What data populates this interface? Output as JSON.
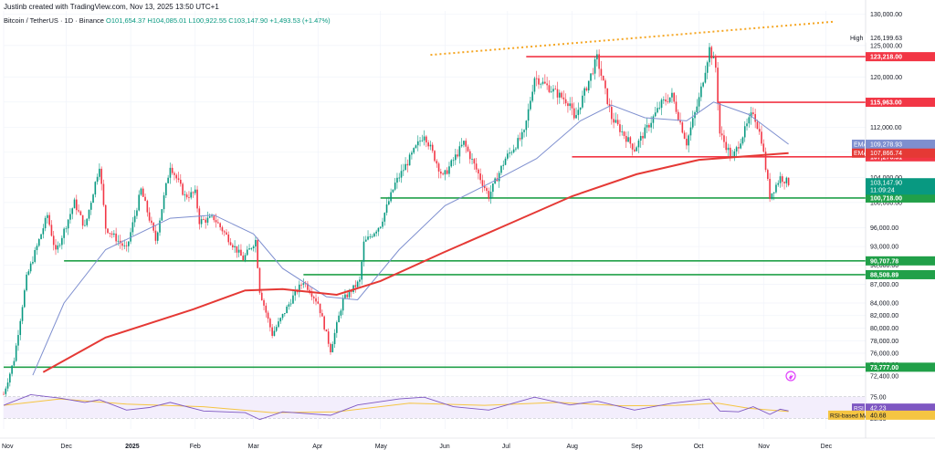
{
  "header": {
    "credit": "Justinb created with TradingView.com, Nov 13, 2025 13:50 UTC+1",
    "symbol": "Bitcoin / TetherUS · 1D · Binance",
    "ohlc": "O101,654.37 H104,085.01 L100,922.55 C103,147.90 +1,493.53 (+1.47%)"
  },
  "colors": {
    "up": "#089981",
    "down": "#f23645",
    "ema_long": "#e53935",
    "ema_short": "#7e8fcf",
    "support": "#21a049",
    "resistance": "#f23645",
    "trendline": "#f5a623",
    "rsi": "#7e57c2",
    "rsi_ma": "#f5c542"
  },
  "chart_data": {
    "type": "candlestick",
    "title": "Bitcoin / TetherUS · 1D · Binance",
    "y_axis": {
      "ticks": [
        130000,
        125000,
        120000,
        116000,
        112000,
        108000,
        104000,
        100000,
        96000,
        93000,
        90000,
        87000,
        84000,
        82000,
        80000,
        78000,
        76000,
        74200,
        72400
      ],
      "tick_labels": [
        "130,000.00",
        "125,000.00",
        "120,000.00",
        "116,000.00",
        "112,000.00",
        "108,000.00",
        "104,000.00",
        "100,000.00",
        "96,000.00",
        "93,000.00",
        "90,000.00",
        "87,000.00",
        "84,000.00",
        "82,000.00",
        "80,000.00",
        "78,000.00",
        "76,000.00",
        "74,200.00",
        "72,400.00"
      ],
      "range": [
        71500,
        130500
      ]
    },
    "x_axis": {
      "labels": [
        "Nov",
        "Dec",
        "2025",
        "Feb",
        "Mar",
        "Apr",
        "May",
        "Jun",
        "Jul",
        "Aug",
        "Sep",
        "Oct",
        "Nov",
        "Dec"
      ]
    },
    "price_path": [
      [
        "2024-11-01",
        69500
      ],
      [
        "2024-11-06",
        75000
      ],
      [
        "2024-11-12",
        88000
      ],
      [
        "2024-11-22",
        98000
      ],
      [
        "2024-11-26",
        92000
      ],
      [
        "2024-12-05",
        100000
      ],
      [
        "2024-12-10",
        96000
      ],
      [
        "2024-12-17",
        106000
      ],
      [
        "2024-12-20",
        96000
      ],
      [
        "2024-12-30",
        92500
      ],
      [
        "2025-01-06",
        102000
      ],
      [
        "2025-01-13",
        94000
      ],
      [
        "2025-01-20",
        106000
      ],
      [
        "2025-01-27",
        101000
      ],
      [
        "2025-02-01",
        101500
      ],
      [
        "2025-02-03",
        97000
      ],
      [
        "2025-02-10",
        97500
      ],
      [
        "2025-02-24",
        91000
      ],
      [
        "2025-03-02",
        94000
      ],
      [
        "2025-03-04",
        86000
      ],
      [
        "2025-03-10",
        79000
      ],
      [
        "2025-03-20",
        85000
      ],
      [
        "2025-03-25",
        87500
      ],
      [
        "2025-04-01",
        84000
      ],
      [
        "2025-04-07",
        76500
      ],
      [
        "2025-04-13",
        84500
      ],
      [
        "2025-04-21",
        87500
      ],
      [
        "2025-04-23",
        93500
      ],
      [
        "2025-05-01",
        96500
      ],
      [
        "2025-05-08",
        103000
      ],
      [
        "2025-05-22",
        111000
      ],
      [
        "2025-05-31",
        104000
      ],
      [
        "2025-06-10",
        109500
      ],
      [
        "2025-06-22",
        101000
      ],
      [
        "2025-06-30",
        107000
      ],
      [
        "2025-07-09",
        111000
      ],
      [
        "2025-07-14",
        120000
      ],
      [
        "2025-07-20",
        118500
      ],
      [
        "2025-07-31",
        115800
      ],
      [
        "2025-08-02",
        113000
      ],
      [
        "2025-08-13",
        123000
      ],
      [
        "2025-08-20",
        113500
      ],
      [
        "2025-08-31",
        108500
      ],
      [
        "2025-09-13",
        115800
      ],
      [
        "2025-09-18",
        117000
      ],
      [
        "2025-09-25",
        109500
      ],
      [
        "2025-10-01",
        116500
      ],
      [
        "2025-10-06",
        124500
      ],
      [
        "2025-10-09",
        121500
      ],
      [
        "2025-10-11",
        111000
      ],
      [
        "2025-10-17",
        107000
      ],
      [
        "2025-10-27",
        114500
      ],
      [
        "2025-10-31",
        110000
      ],
      [
        "2025-11-04",
        101000
      ],
      [
        "2025-11-09",
        104000
      ],
      [
        "2025-11-13",
        103147.9
      ]
    ],
    "ema_long": [
      [
        "2024-11-20",
        73000
      ],
      [
        "2024-12-20",
        78500
      ],
      [
        "2025-01-31",
        83000
      ],
      [
        "2025-02-25",
        86000
      ],
      [
        "2025-03-15",
        86200
      ],
      [
        "2025-04-10",
        85300
      ],
      [
        "2025-05-01",
        87500
      ],
      [
        "2025-05-31",
        92000
      ],
      [
        "2025-07-01",
        96500
      ],
      [
        "2025-08-01",
        101000
      ],
      [
        "2025-09-01",
        104500
      ],
      [
        "2025-10-01",
        106800
      ],
      [
        "2025-11-13",
        107866.74
      ]
    ],
    "ema_short": [
      [
        "2024-11-15",
        72500
      ],
      [
        "2024-11-30",
        84000
      ],
      [
        "2024-12-20",
        92500
      ],
      [
        "2025-01-20",
        97500
      ],
      [
        "2025-02-10",
        98000
      ],
      [
        "2025-03-01",
        95000
      ],
      [
        "2025-03-15",
        89500
      ],
      [
        "2025-04-05",
        85000
      ],
      [
        "2025-04-20",
        84500
      ],
      [
        "2025-05-10",
        92500
      ],
      [
        "2025-06-01",
        99500
      ],
      [
        "2025-06-25",
        103500
      ],
      [
        "2025-07-15",
        107000
      ],
      [
        "2025-08-05",
        113000
      ],
      [
        "2025-08-20",
        115500
      ],
      [
        "2025-09-05",
        113500
      ],
      [
        "2025-09-25",
        113000
      ],
      [
        "2025-10-08",
        116000
      ],
      [
        "2025-10-25",
        114000
      ],
      [
        "2025-11-13",
        109278.93
      ]
    ],
    "levels": [
      {
        "label": "123,218.00",
        "value": 123218,
        "kind": "resistance",
        "from": "2025-07-10"
      },
      {
        "label": "115,963.00",
        "value": 115963,
        "kind": "resistance",
        "from": "2025-10-10"
      },
      {
        "label": "107,276.31",
        "value": 107276.31,
        "kind": "resistance",
        "from": "2025-08-01"
      },
      {
        "label": "100,718.00",
        "value": 100718,
        "kind": "support",
        "from": "2025-05-01"
      },
      {
        "label": "90,707.78",
        "value": 90707.78,
        "kind": "support",
        "from": "2024-11-30"
      },
      {
        "label": "88,508.89",
        "value": 88508.89,
        "kind": "support",
        "from": "2025-03-25"
      },
      {
        "label": "73,777.00",
        "value": 73777,
        "kind": "support",
        "from": "2024-11-01"
      }
    ],
    "trendline": {
      "start": [
        "2025-05-25",
        123500
      ],
      "end": [
        "2025-12-05",
        128800
      ]
    },
    "price_tags": [
      {
        "label": "High",
        "value": "126,199.63",
        "y": 126199.63
      },
      {
        "label": "EMA",
        "value": "109,278.93",
        "y": 109278.93
      },
      {
        "label": "EMA",
        "value": "107,866.74",
        "y": 107866.74
      },
      {
        "label": "",
        "value": "103,147.90",
        "sub": "11:09:24",
        "y": 103147.9
      }
    ],
    "rsi": {
      "ticks": [
        "75.00",
        "25.00"
      ],
      "values": [
        [
          "2024-11-01",
          55
        ],
        [
          "2024-11-14",
          80
        ],
        [
          "2024-11-28",
          72
        ],
        [
          "2024-12-10",
          62
        ],
        [
          "2024-12-17",
          68
        ],
        [
          "2024-12-30",
          44
        ],
        [
          "2025-01-10",
          50
        ],
        [
          "2025-01-20",
          62
        ],
        [
          "2025-02-05",
          42
        ],
        [
          "2025-02-25",
          38
        ],
        [
          "2025-03-04",
          22
        ],
        [
          "2025-03-15",
          40
        ],
        [
          "2025-04-07",
          32
        ],
        [
          "2025-04-20",
          56
        ],
        [
          "2025-05-10",
          70
        ],
        [
          "2025-05-22",
          74
        ],
        [
          "2025-06-05",
          52
        ],
        [
          "2025-06-22",
          44
        ],
        [
          "2025-07-14",
          74
        ],
        [
          "2025-07-31",
          56
        ],
        [
          "2025-08-13",
          65
        ],
        [
          "2025-08-31",
          44
        ],
        [
          "2025-09-18",
          60
        ],
        [
          "2025-10-06",
          70
        ],
        [
          "2025-10-11",
          42
        ],
        [
          "2025-10-20",
          40
        ],
        [
          "2025-10-27",
          52
        ],
        [
          "2025-11-04",
          34
        ],
        [
          "2025-11-09",
          46
        ],
        [
          "2025-11-13",
          42.23
        ]
      ],
      "ma_values": [
        [
          "2024-11-01",
          55
        ],
        [
          "2024-11-28",
          70
        ],
        [
          "2024-12-30",
          58
        ],
        [
          "2025-02-05",
          52
        ],
        [
          "2025-03-10",
          38
        ],
        [
          "2025-04-10",
          40
        ],
        [
          "2025-05-15",
          60
        ],
        [
          "2025-06-20",
          55
        ],
        [
          "2025-07-25",
          62
        ],
        [
          "2025-08-25",
          54
        ],
        [
          "2025-09-20",
          55
        ],
        [
          "2025-10-10",
          60
        ],
        [
          "2025-10-25",
          48
        ],
        [
          "2025-11-13",
          40.68
        ]
      ],
      "labels": [
        {
          "label": "RSI",
          "value": "42.23"
        },
        {
          "label": "RSI-based MA",
          "value": "40.68"
        }
      ]
    },
    "grid": true
  }
}
